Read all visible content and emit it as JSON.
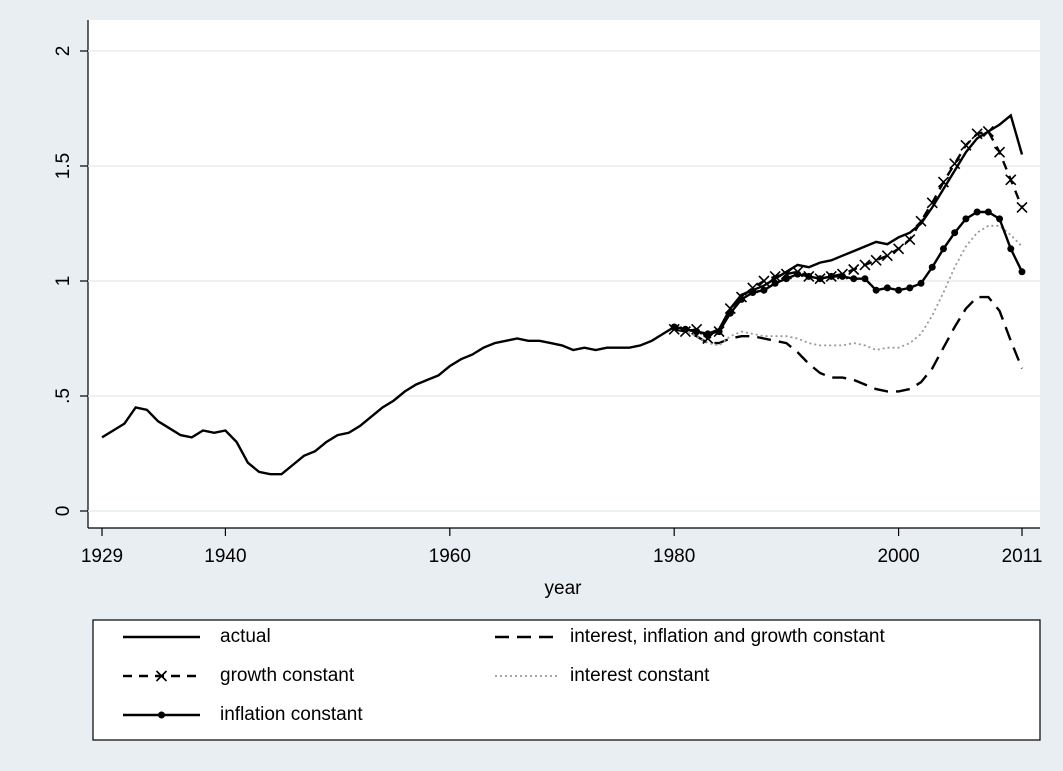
{
  "chart_data": {
    "type": "line",
    "x_label": "year",
    "x": [
      1929,
      1930,
      1931,
      1932,
      1933,
      1934,
      1935,
      1936,
      1937,
      1938,
      1939,
      1940,
      1941,
      1942,
      1943,
      1944,
      1945,
      1946,
      1947,
      1948,
      1949,
      1950,
      1951,
      1952,
      1953,
      1954,
      1955,
      1956,
      1957,
      1958,
      1959,
      1960,
      1961,
      1962,
      1963,
      1964,
      1965,
      1966,
      1967,
      1968,
      1969,
      1970,
      1971,
      1972,
      1973,
      1974,
      1975,
      1976,
      1977,
      1978,
      1979,
      1980,
      1981,
      1982,
      1983,
      1984,
      1985,
      1986,
      1987,
      1988,
      1989,
      1990,
      1991,
      1992,
      1993,
      1994,
      1995,
      1996,
      1997,
      1998,
      1999,
      2000,
      2001,
      2002,
      2003,
      2004,
      2005,
      2006,
      2007,
      2008,
      2009,
      2010,
      2011
    ],
    "xlim": [
      1929,
      2011
    ],
    "xticks": [
      1929,
      1940,
      1960,
      1980,
      2000,
      2011
    ],
    "ylim": [
      0,
      2
    ],
    "yticks": [
      0,
      {
        "value": 0.5,
        "label": ".5"
      },
      1,
      1.5,
      2
    ],
    "grid": true,
    "legend_columns": 2,
    "series": [
      {
        "name": "actual",
        "color": "#000000",
        "dash": "solid",
        "marker": "none",
        "values": [
          0.32,
          0.35,
          0.38,
          0.45,
          0.44,
          0.39,
          0.36,
          0.33,
          0.32,
          0.35,
          0.34,
          0.35,
          0.3,
          0.21,
          0.17,
          0.16,
          0.16,
          0.2,
          0.24,
          0.26,
          0.3,
          0.33,
          0.34,
          0.37,
          0.41,
          0.45,
          0.48,
          0.52,
          0.55,
          0.57,
          0.59,
          0.63,
          0.66,
          0.68,
          0.71,
          0.73,
          0.74,
          0.75,
          0.74,
          0.74,
          0.73,
          0.72,
          0.7,
          0.71,
          0.7,
          0.71,
          0.71,
          0.71,
          0.72,
          0.74,
          0.77,
          0.8,
          0.79,
          0.78,
          0.77,
          0.79,
          0.88,
          0.94,
          0.96,
          0.98,
          1.01,
          1.04,
          1.07,
          1.06,
          1.08,
          1.09,
          1.11,
          1.13,
          1.15,
          1.17,
          1.16,
          1.19,
          1.21,
          1.25,
          1.32,
          1.4,
          1.48,
          1.56,
          1.62,
          1.65,
          1.68,
          1.72,
          1.55
        ]
      },
      {
        "name": "interest, inflation and growth constant",
        "color": "#000000",
        "dash": "long",
        "marker": "none",
        "values": [
          null,
          null,
          null,
          null,
          null,
          null,
          null,
          null,
          null,
          null,
          null,
          null,
          null,
          null,
          null,
          null,
          null,
          null,
          null,
          null,
          null,
          null,
          null,
          null,
          null,
          null,
          null,
          null,
          null,
          null,
          null,
          null,
          null,
          null,
          null,
          null,
          null,
          null,
          null,
          null,
          null,
          null,
          null,
          null,
          null,
          null,
          null,
          null,
          null,
          null,
          null,
          0.8,
          0.78,
          0.76,
          0.73,
          0.73,
          0.75,
          0.76,
          0.76,
          0.75,
          0.74,
          0.73,
          0.69,
          0.64,
          0.6,
          0.58,
          0.58,
          0.57,
          0.55,
          0.53,
          0.52,
          0.52,
          0.53,
          0.56,
          0.62,
          0.71,
          0.8,
          0.88,
          0.93,
          0.93,
          0.87,
          0.74,
          0.62
        ]
      },
      {
        "name": "growth constant",
        "color": "#000000",
        "dash": "short",
        "marker": "x",
        "values": [
          null,
          null,
          null,
          null,
          null,
          null,
          null,
          null,
          null,
          null,
          null,
          null,
          null,
          null,
          null,
          null,
          null,
          null,
          null,
          null,
          null,
          null,
          null,
          null,
          null,
          null,
          null,
          null,
          null,
          null,
          null,
          null,
          null,
          null,
          null,
          null,
          null,
          null,
          null,
          null,
          null,
          null,
          null,
          null,
          null,
          null,
          null,
          null,
          null,
          null,
          null,
          0.79,
          0.78,
          0.79,
          0.75,
          0.78,
          0.88,
          0.93,
          0.97,
          1.0,
          1.02,
          1.03,
          1.04,
          1.02,
          1.01,
          1.02,
          1.03,
          1.05,
          1.07,
          1.09,
          1.11,
          1.14,
          1.18,
          1.26,
          1.34,
          1.43,
          1.51,
          1.59,
          1.64,
          1.65,
          1.56,
          1.44,
          1.32
        ]
      },
      {
        "name": "interest constant",
        "color": "#999999",
        "dash": "dot",
        "marker": "none",
        "values": [
          null,
          null,
          null,
          null,
          null,
          null,
          null,
          null,
          null,
          null,
          null,
          null,
          null,
          null,
          null,
          null,
          null,
          null,
          null,
          null,
          null,
          null,
          null,
          null,
          null,
          null,
          null,
          null,
          null,
          null,
          null,
          null,
          null,
          null,
          null,
          null,
          null,
          null,
          null,
          null,
          null,
          null,
          null,
          null,
          null,
          null,
          null,
          null,
          null,
          null,
          null,
          0.8,
          0.78,
          0.76,
          0.73,
          0.72,
          0.76,
          0.78,
          0.77,
          0.76,
          0.76,
          0.76,
          0.75,
          0.73,
          0.72,
          0.72,
          0.72,
          0.73,
          0.72,
          0.7,
          0.71,
          0.71,
          0.73,
          0.77,
          0.85,
          0.95,
          1.06,
          1.15,
          1.21,
          1.24,
          1.24,
          1.2,
          1.15
        ]
      },
      {
        "name": "inflation constant",
        "color": "#000000",
        "dash": "solid",
        "marker": "dot",
        "values": [
          null,
          null,
          null,
          null,
          null,
          null,
          null,
          null,
          null,
          null,
          null,
          null,
          null,
          null,
          null,
          null,
          null,
          null,
          null,
          null,
          null,
          null,
          null,
          null,
          null,
          null,
          null,
          null,
          null,
          null,
          null,
          null,
          null,
          null,
          null,
          null,
          null,
          null,
          null,
          null,
          null,
          null,
          null,
          null,
          null,
          null,
          null,
          null,
          null,
          null,
          null,
          0.8,
          0.79,
          0.78,
          0.77,
          0.78,
          0.86,
          0.92,
          0.95,
          0.96,
          0.99,
          1.01,
          1.03,
          1.02,
          1.01,
          1.02,
          1.02,
          1.01,
          1.01,
          0.96,
          0.97,
          0.96,
          0.97,
          0.99,
          1.06,
          1.14,
          1.21,
          1.27,
          1.3,
          1.3,
          1.27,
          1.14,
          1.04
        ]
      }
    ]
  }
}
